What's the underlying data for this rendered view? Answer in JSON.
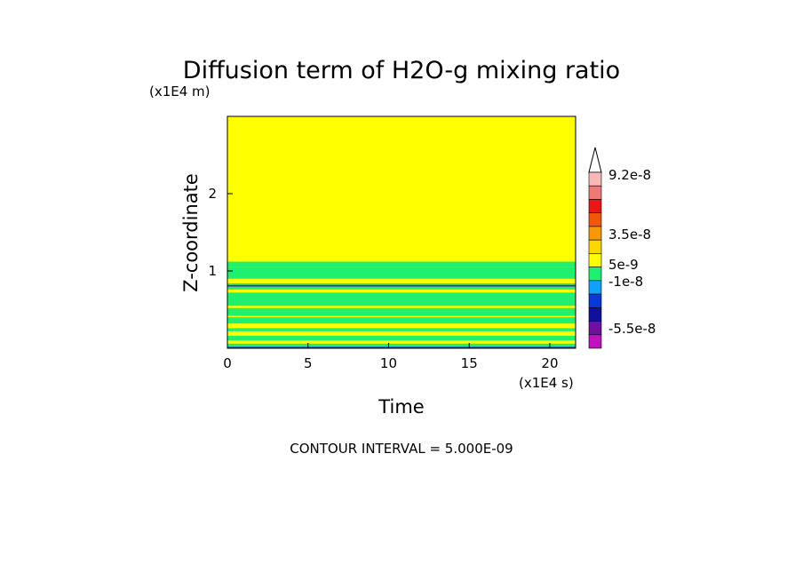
{
  "chart_data": {
    "type": "heatmap",
    "title": "Diffusion term of H2O-g mixing ratio",
    "xlabel": "Time",
    "ylabel": "Z-coordinate",
    "x_unit": "(x1E4 s)",
    "y_unit": "(x1E4 m)",
    "xlim": [
      0,
      21.6
    ],
    "ylim": [
      0,
      3.0
    ],
    "x_ticks": [
      "0",
      "5",
      "10",
      "15",
      "20"
    ],
    "y_ticks": [
      "1",
      "2"
    ],
    "colorbar": {
      "labels": [
        "9.2e-8",
        "3.5e-8",
        "5e-9",
        "-1e-8",
        "-5.5e-8"
      ],
      "colors": [
        "#ffffff",
        "#f8b8b8",
        "#f07878",
        "#e81818",
        "#f05808",
        "#f89808",
        "#f8d800",
        "#ffff00",
        "#20f070",
        "#10a0ff",
        "#0838d8",
        "#1010a0",
        "#7010a0",
        "#c010c0"
      ]
    },
    "background_value_color": "#ffff00",
    "bands": [
      {
        "z": [
          0.0,
          0.02
        ],
        "color": "#0838d8"
      },
      {
        "z": [
          0.02,
          0.06
        ],
        "color": "#20f070"
      },
      {
        "z": [
          0.1,
          0.16
        ],
        "color": "#20f070"
      },
      {
        "z": [
          0.22,
          0.26
        ],
        "color": "#20f070"
      },
      {
        "z": [
          0.32,
          0.4
        ],
        "color": "#20f070"
      },
      {
        "z": [
          0.42,
          0.52
        ],
        "color": "#20f070"
      },
      {
        "z": [
          0.55,
          0.72
        ],
        "color": "#20f070"
      },
      {
        "z": [
          0.76,
          0.8
        ],
        "color": "#20f070"
      },
      {
        "z": [
          0.8,
          0.81
        ],
        "color": "#7010a0"
      },
      {
        "z": [
          0.81,
          0.82
        ],
        "color": "#0838d8"
      },
      {
        "z": [
          0.82,
          0.84
        ],
        "color": "#20f070"
      },
      {
        "z": [
          0.9,
          1.05
        ],
        "color": "#20f070"
      },
      {
        "z": [
          1.05,
          1.12
        ],
        "color": "#20f070"
      }
    ],
    "footer": "CONTOUR INTERVAL = 5.000E-09"
  }
}
